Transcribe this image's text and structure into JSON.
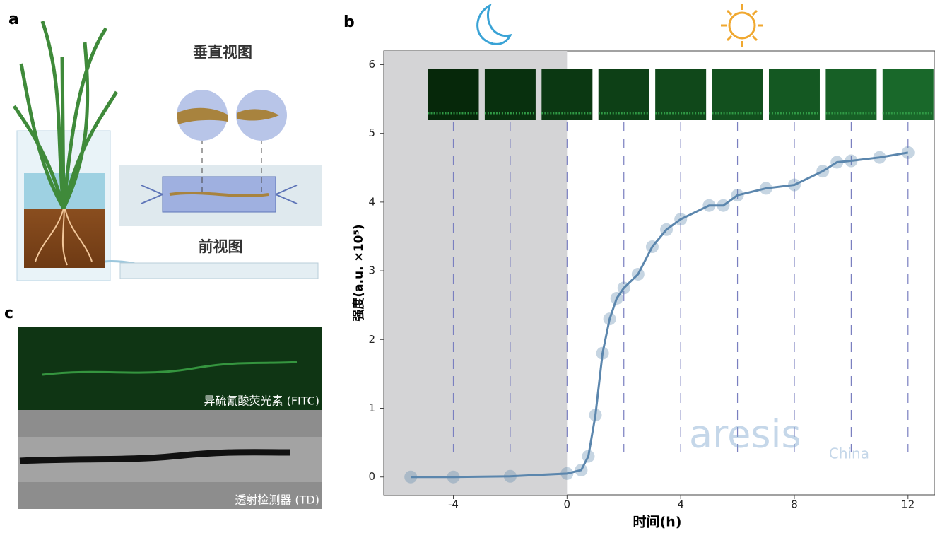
{
  "panel_labels": [
    "a",
    "b",
    "c"
  ],
  "panel_a": {
    "top_view_label": "垂直视图",
    "front_view_label": "前视图"
  },
  "panel_c": {
    "fitc_label": "异硫氰酸荧光素 (FITC)",
    "td_label": "透射检测器 (TD)"
  },
  "watermark": {
    "brand": "aresis",
    "region": "China"
  },
  "chart_data": {
    "type": "line",
    "x_label": "时间(h)",
    "y_label": "强度(a.u. ×10⁵)",
    "x": [
      -5.5,
      -4,
      -2,
      0,
      0.5,
      0.75,
      1,
      1.25,
      1.5,
      1.75,
      2,
      2.5,
      3,
      3.5,
      4,
      5,
      5.5,
      6,
      7,
      8,
      9,
      9.5,
      10,
      11,
      12
    ],
    "series": [
      {
        "name": "强度",
        "color": "#5b86ad",
        "values": [
          0.0,
          0.0,
          0.01,
          0.05,
          0.1,
          0.3,
          0.9,
          1.8,
          2.3,
          2.6,
          2.75,
          2.95,
          3.35,
          3.6,
          3.75,
          3.95,
          3.95,
          4.1,
          4.2,
          4.25,
          4.45,
          4.58,
          4.6,
          4.65,
          4.72
        ]
      }
    ],
    "xlim": [
      -6.45,
      12.95
    ],
    "ylim": [
      -0.26,
      6.2
    ],
    "xticks": [
      -4,
      0,
      4,
      8,
      12
    ],
    "yticks": [
      0,
      1,
      2,
      3,
      4,
      5,
      6
    ],
    "shade_until": 0,
    "snapshot_times": [
      -4,
      -2,
      0,
      2,
      4,
      6,
      8,
      10,
      12
    ]
  }
}
